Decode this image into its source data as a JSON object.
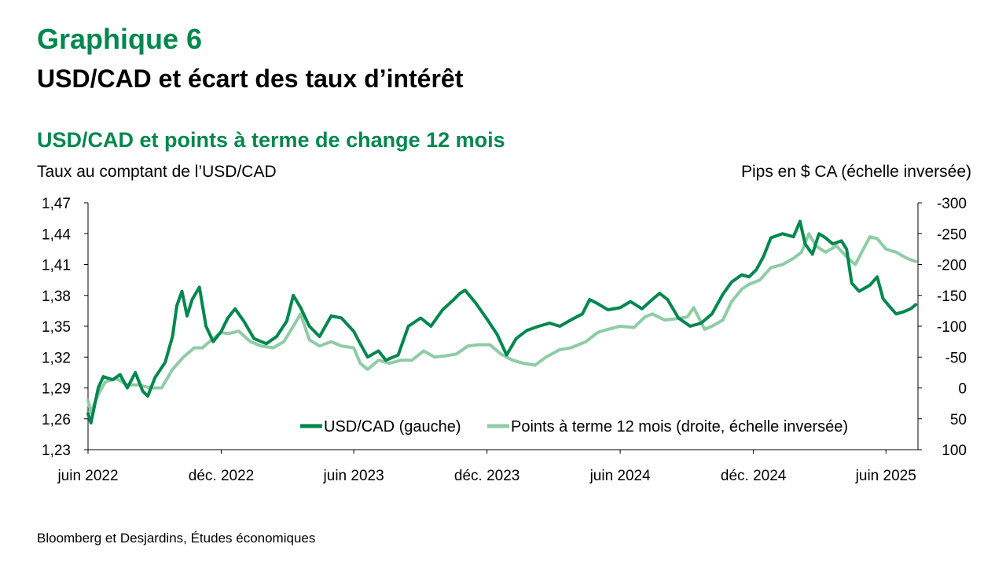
{
  "header": {
    "graph_number": "Graphique 6",
    "title": "USD/CAD et écart des taux d’intérêt"
  },
  "chart_heading": "USD/CAD et points à terme de change 12 mois",
  "source": "Bloomberg et Desjardins, Études économiques",
  "colors": {
    "title_green": "#00874e",
    "usdcad_line": "#00874e",
    "forward_line": "#8fcca5"
  },
  "chart_data": {
    "type": "line",
    "y_left_label": "Taux au comptant de l’USD/CAD",
    "y_right_label": "Pips en $ CA (échelle inversée)",
    "y_left_range": [
      1.23,
      1.47
    ],
    "y_left_ticks": [
      "1,47",
      "1,44",
      "1,41",
      "1,38",
      "1,35",
      "1,32",
      "1,29",
      "1,26",
      "1,23"
    ],
    "y_right_range": [
      -300,
      100
    ],
    "y_right_inverted": true,
    "y_right_ticks": [
      "-300",
      "-250",
      "-200",
      "-150",
      "-100",
      "-50",
      "0",
      "50",
      "100"
    ],
    "x_range": [
      "2022-06-01",
      "2025-07-15"
    ],
    "x_ticks": [
      {
        "label": "juin 2022",
        "date": "2022-06-01"
      },
      {
        "label": "déc. 2022",
        "date": "2022-12-01"
      },
      {
        "label": "juin 2023",
        "date": "2023-06-01"
      },
      {
        "label": "déc. 2023",
        "date": "2023-12-01"
      },
      {
        "label": "juin 2024",
        "date": "2024-06-01"
      },
      {
        "label": "déc. 2024",
        "date": "2024-12-01"
      },
      {
        "label": "juin 2025",
        "date": "2025-06-01"
      }
    ],
    "legend_position": "bottom-right, inside plot",
    "series": [
      {
        "name": "USD/CAD (gauche)",
        "axis": "left",
        "points": [
          [
            "2022-06-01",
            1.265
          ],
          [
            "2022-06-05",
            1.256
          ],
          [
            "2022-06-15",
            1.29
          ],
          [
            "2022-06-22",
            1.301
          ],
          [
            "2022-07-05",
            1.298
          ],
          [
            "2022-07-15",
            1.303
          ],
          [
            "2022-07-25",
            1.29
          ],
          [
            "2022-08-05",
            1.305
          ],
          [
            "2022-08-15",
            1.287
          ],
          [
            "2022-08-22",
            1.282
          ],
          [
            "2022-09-01",
            1.3
          ],
          [
            "2022-09-15",
            1.315
          ],
          [
            "2022-09-25",
            1.34
          ],
          [
            "2022-10-01",
            1.37
          ],
          [
            "2022-10-08",
            1.384
          ],
          [
            "2022-10-15",
            1.36
          ],
          [
            "2022-10-22",
            1.376
          ],
          [
            "2022-11-01",
            1.388
          ],
          [
            "2022-11-10",
            1.35
          ],
          [
            "2022-11-20",
            1.335
          ],
          [
            "2022-12-01",
            1.345
          ],
          [
            "2022-12-10",
            1.358
          ],
          [
            "2022-12-20",
            1.367
          ],
          [
            "2023-01-01",
            1.355
          ],
          [
            "2023-01-15",
            1.338
          ],
          [
            "2023-02-01",
            1.333
          ],
          [
            "2023-02-15",
            1.34
          ],
          [
            "2023-03-01",
            1.355
          ],
          [
            "2023-03-10",
            1.38
          ],
          [
            "2023-03-20",
            1.368
          ],
          [
            "2023-04-01",
            1.35
          ],
          [
            "2023-04-15",
            1.34
          ],
          [
            "2023-05-01",
            1.36
          ],
          [
            "2023-05-15",
            1.358
          ],
          [
            "2023-06-01",
            1.345
          ],
          [
            "2023-06-10",
            1.333
          ],
          [
            "2023-06-20",
            1.32
          ],
          [
            "2023-07-05",
            1.326
          ],
          [
            "2023-07-15",
            1.317
          ],
          [
            "2023-08-01",
            1.322
          ],
          [
            "2023-08-15",
            1.35
          ],
          [
            "2023-09-01",
            1.358
          ],
          [
            "2023-09-15",
            1.35
          ],
          [
            "2023-10-01",
            1.366
          ],
          [
            "2023-10-15",
            1.375
          ],
          [
            "2023-10-25",
            1.382
          ],
          [
            "2023-11-01",
            1.385
          ],
          [
            "2023-11-15",
            1.373
          ],
          [
            "2023-12-01",
            1.357
          ],
          [
            "2023-12-15",
            1.342
          ],
          [
            "2023-12-28",
            1.322
          ],
          [
            "2024-01-10",
            1.338
          ],
          [
            "2024-01-25",
            1.346
          ],
          [
            "2024-02-10",
            1.35
          ],
          [
            "2024-02-25",
            1.353
          ],
          [
            "2024-03-10",
            1.35
          ],
          [
            "2024-03-25",
            1.356
          ],
          [
            "2024-04-10",
            1.362
          ],
          [
            "2024-04-20",
            1.376
          ],
          [
            "2024-05-01",
            1.372
          ],
          [
            "2024-05-15",
            1.366
          ],
          [
            "2024-06-01",
            1.368
          ],
          [
            "2024-06-15",
            1.374
          ],
          [
            "2024-07-01",
            1.367
          ],
          [
            "2024-07-15",
            1.376
          ],
          [
            "2024-07-25",
            1.382
          ],
          [
            "2024-08-05",
            1.376
          ],
          [
            "2024-08-20",
            1.358
          ],
          [
            "2024-09-05",
            1.35
          ],
          [
            "2024-09-20",
            1.353
          ],
          [
            "2024-10-05",
            1.362
          ],
          [
            "2024-10-20",
            1.381
          ],
          [
            "2024-11-01",
            1.393
          ],
          [
            "2024-11-15",
            1.4
          ],
          [
            "2024-11-25",
            1.398
          ],
          [
            "2024-12-05",
            1.405
          ],
          [
            "2024-12-15",
            1.418
          ],
          [
            "2024-12-25",
            1.436
          ],
          [
            "2025-01-10",
            1.44
          ],
          [
            "2025-01-25",
            1.437
          ],
          [
            "2025-02-03",
            1.452
          ],
          [
            "2025-02-10",
            1.43
          ],
          [
            "2025-02-20",
            1.42
          ],
          [
            "2025-03-01",
            1.44
          ],
          [
            "2025-03-10",
            1.436
          ],
          [
            "2025-03-20",
            1.43
          ],
          [
            "2025-04-01",
            1.433
          ],
          [
            "2025-04-08",
            1.425
          ],
          [
            "2025-04-15",
            1.392
          ],
          [
            "2025-04-25",
            1.384
          ],
          [
            "2025-05-10",
            1.39
          ],
          [
            "2025-05-20",
            1.398
          ],
          [
            "2025-05-28",
            1.377
          ],
          [
            "2025-06-05",
            1.37
          ],
          [
            "2025-06-15",
            1.362
          ],
          [
            "2025-06-25",
            1.364
          ],
          [
            "2025-07-05",
            1.367
          ],
          [
            "2025-07-12",
            1.371
          ]
        ]
      },
      {
        "name": "Points à terme 12 mois (droite, échelle inversée)",
        "axis": "right",
        "points": [
          [
            "2022-06-01",
            20
          ],
          [
            "2022-06-05",
            40
          ],
          [
            "2022-06-15",
            10
          ],
          [
            "2022-06-25",
            -10
          ],
          [
            "2022-07-10",
            -15
          ],
          [
            "2022-07-25",
            -5
          ],
          [
            "2022-08-10",
            -5
          ],
          [
            "2022-08-25",
            0
          ],
          [
            "2022-09-10",
            0
          ],
          [
            "2022-09-25",
            -30
          ],
          [
            "2022-10-10",
            -50
          ],
          [
            "2022-10-25",
            -65
          ],
          [
            "2022-11-05",
            -65
          ],
          [
            "2022-11-20",
            -80
          ],
          [
            "2022-12-01",
            -90
          ],
          [
            "2022-12-10",
            -88
          ],
          [
            "2022-12-25",
            -92
          ],
          [
            "2023-01-10",
            -75
          ],
          [
            "2023-01-25",
            -68
          ],
          [
            "2023-02-10",
            -65
          ],
          [
            "2023-02-25",
            -75
          ],
          [
            "2023-03-10",
            -100
          ],
          [
            "2023-03-20",
            -120
          ],
          [
            "2023-04-01",
            -78
          ],
          [
            "2023-04-15",
            -68
          ],
          [
            "2023-05-01",
            -75
          ],
          [
            "2023-05-15",
            -68
          ],
          [
            "2023-06-01",
            -65
          ],
          [
            "2023-06-10",
            -40
          ],
          [
            "2023-06-20",
            -30
          ],
          [
            "2023-07-05",
            -45
          ],
          [
            "2023-07-20",
            -40
          ],
          [
            "2023-08-05",
            -45
          ],
          [
            "2023-08-20",
            -45
          ],
          [
            "2023-09-05",
            -60
          ],
          [
            "2023-09-20",
            -50
          ],
          [
            "2023-10-05",
            -52
          ],
          [
            "2023-10-20",
            -55
          ],
          [
            "2023-11-05",
            -68
          ],
          [
            "2023-11-20",
            -70
          ],
          [
            "2023-12-05",
            -70
          ],
          [
            "2023-12-20",
            -55
          ],
          [
            "2024-01-05",
            -45
          ],
          [
            "2024-01-20",
            -40
          ],
          [
            "2024-02-05",
            -37
          ],
          [
            "2024-02-20",
            -50
          ],
          [
            "2024-03-10",
            -62
          ],
          [
            "2024-03-25",
            -65
          ],
          [
            "2024-04-15",
            -75
          ],
          [
            "2024-05-01",
            -90
          ],
          [
            "2024-05-15",
            -95
          ],
          [
            "2024-06-01",
            -100
          ],
          [
            "2024-06-20",
            -98
          ],
          [
            "2024-07-05",
            -115
          ],
          [
            "2024-07-15",
            -120
          ],
          [
            "2024-08-01",
            -110
          ],
          [
            "2024-08-15",
            -112
          ],
          [
            "2024-09-01",
            -115
          ],
          [
            "2024-09-10",
            -130
          ],
          [
            "2024-09-25",
            -95
          ],
          [
            "2024-10-05",
            -100
          ],
          [
            "2024-10-20",
            -110
          ],
          [
            "2024-11-01",
            -140
          ],
          [
            "2024-11-15",
            -160
          ],
          [
            "2024-11-25",
            -168
          ],
          [
            "2024-12-10",
            -175
          ],
          [
            "2024-12-25",
            -195
          ],
          [
            "2025-01-10",
            -200
          ],
          [
            "2025-01-25",
            -210
          ],
          [
            "2025-02-05",
            -220
          ],
          [
            "2025-02-15",
            -250
          ],
          [
            "2025-02-25",
            -230
          ],
          [
            "2025-03-10",
            -220
          ],
          [
            "2025-03-25",
            -230
          ],
          [
            "2025-04-10",
            -210
          ],
          [
            "2025-04-20",
            -200
          ],
          [
            "2025-05-01",
            -225
          ],
          [
            "2025-05-10",
            -245
          ],
          [
            "2025-05-20",
            -242
          ],
          [
            "2025-06-01",
            -225
          ],
          [
            "2025-06-15",
            -220
          ],
          [
            "2025-06-30",
            -210
          ],
          [
            "2025-07-12",
            -205
          ]
        ]
      }
    ]
  }
}
